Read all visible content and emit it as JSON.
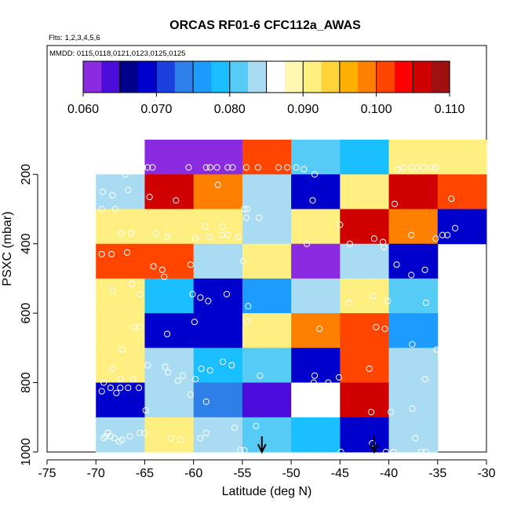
{
  "chart_data": {
    "type": "heatmap",
    "title": "ORCAS RF01-6 CFC112a_AWAS",
    "subtitle_flights": "Flts: 1,2,3,4,5,6",
    "subtitle_dates": "MMDD: 0115,0118,0121,0123,0125,0125",
    "xlabel": "Latitude (deg N)",
    "ylabel": "PSXC (mbar)",
    "xlim": [
      -75,
      -30
    ],
    "ylim": [
      1000,
      100
    ],
    "x_ticks": [
      -75,
      -70,
      -65,
      -60,
      -55,
      -50,
      -45,
      -40,
      -35,
      -30
    ],
    "y_ticks": [
      200,
      400,
      600,
      800,
      1000
    ],
    "colorbar": {
      "range": [
        0.06,
        0.11
      ],
      "ticks": [
        "0.060",
        "0.070",
        "0.080",
        "0.090",
        "0.100",
        "0.110"
      ],
      "colors": [
        "#8a2be2",
        "#4b0bd8",
        "#00008b",
        "#0000cd",
        "#1c3fe0",
        "#2f7fe8",
        "#1e9bff",
        "#19bfff",
        "#56cbf5",
        "#a9dcf2",
        "#ffffff",
        "#fff8b0",
        "#ffef80",
        "#ffd43a",
        "#ffb000",
        "#ff7f00",
        "#ff4500",
        "#ff0000",
        "#d00000",
        "#a01010"
      ]
    },
    "lat_edges": [
      -70,
      -65,
      -60,
      -55,
      -50,
      -45,
      -40,
      -35,
      -30
    ],
    "p_edges": [
      100,
      200,
      300,
      400,
      500,
      600,
      700,
      800,
      900,
      1000
    ],
    "cells": [
      [
        0.087,
        0.062,
        0.062,
        0.102,
        0.082,
        0.078,
        0.091,
        0.091
      ],
      [
        0.083,
        0.107,
        0.098,
        0.084,
        0.069,
        0.091,
        0.107,
        0.102
      ],
      [
        0.091,
        0.091,
        0.091,
        0.083,
        0.091,
        0.107,
        0.098,
        0.069
      ],
      [
        0.102,
        0.102,
        0.083,
        0.091,
        0.062,
        0.083,
        0.069,
        null
      ],
      [
        0.091,
        0.078,
        0.069,
        0.076,
        0.083,
        0.091,
        0.082,
        null
      ],
      [
        0.091,
        0.069,
        0.069,
        0.091,
        0.098,
        0.102,
        0.076,
        null
      ],
      [
        0.091,
        0.083,
        0.078,
        0.08,
        0.069,
        0.102,
        0.083,
        null
      ],
      [
        0.069,
        0.083,
        0.073,
        0.064,
        0.086,
        0.107,
        0.083,
        null
      ],
      [
        0.083,
        0.091,
        0.083,
        0.08,
        0.078,
        0.069,
        0.083,
        null
      ]
    ],
    "samples": [
      [
        -69.2,
        190
      ],
      [
        -68.2,
        180
      ],
      [
        -67.9,
        185
      ],
      [
        -67.0,
        200
      ],
      [
        -65.2,
        180
      ],
      [
        -64.7,
        180
      ],
      [
        -64.2,
        180
      ],
      [
        -60.5,
        180
      ],
      [
        -58.7,
        180
      ],
      [
        -58.3,
        180
      ],
      [
        -57.6,
        180
      ],
      [
        -56.5,
        180
      ],
      [
        -56.0,
        180
      ],
      [
        -54.6,
        180
      ],
      [
        -53.4,
        180
      ],
      [
        -51.3,
        180
      ],
      [
        -50.4,
        180
      ],
      [
        -49.5,
        180
      ],
      [
        -48.7,
        185
      ],
      [
        -47.6,
        200
      ],
      [
        -39.1,
        185
      ],
      [
        -38.5,
        180
      ],
      [
        -37.7,
        180
      ],
      [
        -37.1,
        180
      ],
      [
        -36.4,
        180
      ],
      [
        -35.7,
        180
      ],
      [
        -35.2,
        180
      ],
      [
        -69.3,
        250
      ],
      [
        -68.3,
        260
      ],
      [
        -66.7,
        245
      ],
      [
        -64.5,
        265
      ],
      [
        -61.8,
        275
      ],
      [
        -57.5,
        230
      ],
      [
        -54.8,
        300
      ],
      [
        -54.5,
        300
      ],
      [
        -53.3,
        325
      ],
      [
        -47.8,
        275
      ],
      [
        -39.4,
        285
      ],
      [
        -33.6,
        270
      ],
      [
        -68.0,
        300
      ],
      [
        -69.4,
        300
      ],
      [
        -67.4,
        370
      ],
      [
        -66.4,
        370
      ],
      [
        -63.8,
        370
      ],
      [
        -62.7,
        380
      ],
      [
        -59.8,
        385
      ],
      [
        -58.3,
        380
      ],
      [
        -57.1,
        375
      ],
      [
        -56.5,
        375
      ],
      [
        -55.4,
        380
      ],
      [
        -54.6,
        325
      ],
      [
        -48.4,
        400
      ],
      [
        -45.0,
        345
      ],
      [
        -41.5,
        385
      ],
      [
        -40.6,
        395
      ],
      [
        -37.7,
        375
      ],
      [
        -35.2,
        385
      ],
      [
        -34.5,
        375
      ],
      [
        -34.0,
        375
      ],
      [
        -33.2,
        355
      ],
      [
        -57.0,
        350
      ],
      [
        -58.8,
        350
      ],
      [
        -69.4,
        430
      ],
      [
        -68.4,
        430
      ],
      [
        -66.8,
        425
      ],
      [
        -64.1,
        465
      ],
      [
        -63.2,
        475
      ],
      [
        -60.3,
        460
      ],
      [
        -54.9,
        450
      ],
      [
        -44.0,
        400
      ],
      [
        -40.5,
        410
      ],
      [
        -39.2,
        460
      ],
      [
        -37.7,
        490
      ],
      [
        -36.3,
        475
      ],
      [
        -65.5,
        545
      ],
      [
        -63.0,
        495
      ],
      [
        -60.1,
        545
      ],
      [
        -59.3,
        555
      ],
      [
        -58.5,
        565
      ],
      [
        -56.6,
        545
      ],
      [
        -54.4,
        580
      ],
      [
        -44.1,
        570
      ],
      [
        -41.6,
        550
      ],
      [
        -40.1,
        565
      ],
      [
        -36.2,
        570
      ],
      [
        -66.3,
        515
      ],
      [
        -68.3,
        535
      ],
      [
        -66.0,
        640
      ],
      [
        -65.5,
        640
      ],
      [
        -62.7,
        660
      ],
      [
        -59.9,
        625
      ],
      [
        -54.5,
        625
      ],
      [
        -47.1,
        645
      ],
      [
        -41.3,
        640
      ],
      [
        -40.4,
        645
      ],
      [
        -37.6,
        690
      ],
      [
        -35.1,
        705
      ],
      [
        -67.3,
        705
      ],
      [
        -68.3,
        760
      ],
      [
        -67.5,
        790
      ],
      [
        -66.2,
        790
      ],
      [
        -64.7,
        750
      ],
      [
        -62.9,
        755
      ],
      [
        -62.6,
        770
      ],
      [
        -61.1,
        780
      ],
      [
        -61.6,
        795
      ],
      [
        -59.8,
        790
      ],
      [
        -59.2,
        760
      ],
      [
        -58.3,
        765
      ],
      [
        -57.0,
        740
      ],
      [
        -56.1,
        750
      ],
      [
        -53.2,
        780
      ],
      [
        -47.6,
        780
      ],
      [
        -47.7,
        800
      ],
      [
        -46.2,
        800
      ],
      [
        -45.1,
        785
      ],
      [
        -42.0,
        760
      ],
      [
        -36.3,
        790
      ],
      [
        -34.5,
        770
      ],
      [
        -69.2,
        800
      ],
      [
        -69.4,
        825
      ],
      [
        -68.5,
        815
      ],
      [
        -67.9,
        830
      ],
      [
        -67.5,
        815
      ],
      [
        -66.7,
        815
      ],
      [
        -65.6,
        815
      ],
      [
        -64.9,
        880
      ],
      [
        -60.3,
        835
      ],
      [
        -58.7,
        855
      ],
      [
        -46.2,
        840
      ],
      [
        -41.8,
        885
      ],
      [
        -39.8,
        885
      ],
      [
        -37.6,
        875
      ],
      [
        -69.2,
        960
      ],
      [
        -69.0,
        955
      ],
      [
        -68.8,
        945
      ],
      [
        -68.5,
        955
      ],
      [
        -68.1,
        960
      ],
      [
        -67.6,
        970
      ],
      [
        -67.3,
        965
      ],
      [
        -66.5,
        955
      ],
      [
        -65.5,
        945
      ],
      [
        -65.0,
        945
      ],
      [
        -62.3,
        960
      ],
      [
        -61.3,
        965
      ],
      [
        -59.3,
        960
      ],
      [
        -58.7,
        945
      ],
      [
        -55.8,
        930
      ],
      [
        -55.2,
        995
      ],
      [
        -54.8,
        995
      ],
      [
        -53.6,
        925
      ],
      [
        -41.7,
        975
      ],
      [
        -40.3,
        1000
      ],
      [
        -39.5,
        1000
      ],
      [
        -37.3,
        960
      ],
      [
        -36.7,
        1000
      ],
      [
        -36.2,
        1000
      ],
      [
        -44.9,
        1000
      ]
    ],
    "arrows_lat": [
      -53,
      -41.5
    ]
  }
}
